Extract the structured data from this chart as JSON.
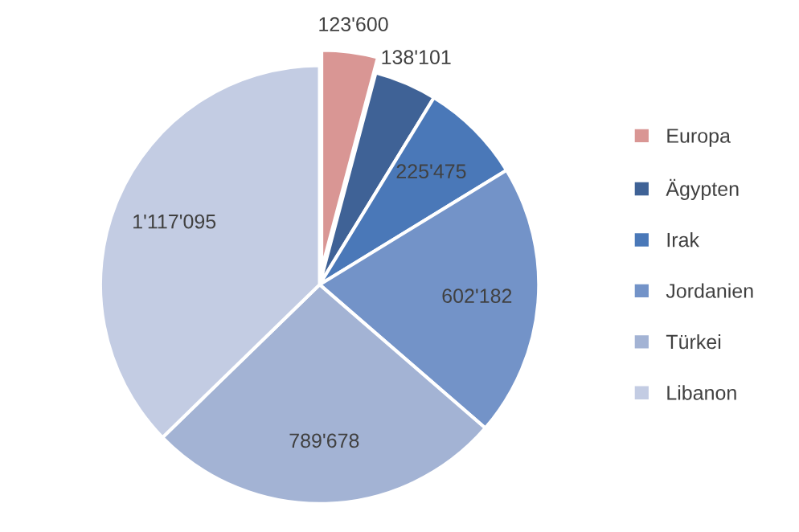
{
  "chart_data": {
    "type": "pie",
    "categories": [
      "Europa",
      "Ägypten",
      "Irak",
      "Jordanien",
      "Türkei",
      "Libanon"
    ],
    "values": [
      123600,
      138101,
      225475,
      602182,
      789678,
      1117095
    ],
    "value_labels": [
      "123'600",
      "138'101",
      "225'475",
      "602'182",
      "789'678",
      "1'117'095"
    ],
    "colors": [
      "#d99694",
      "#3f6296",
      "#4a78b8",
      "#7393c8",
      "#a3b3d4",
      "#c3cce3"
    ],
    "legend": "right"
  }
}
